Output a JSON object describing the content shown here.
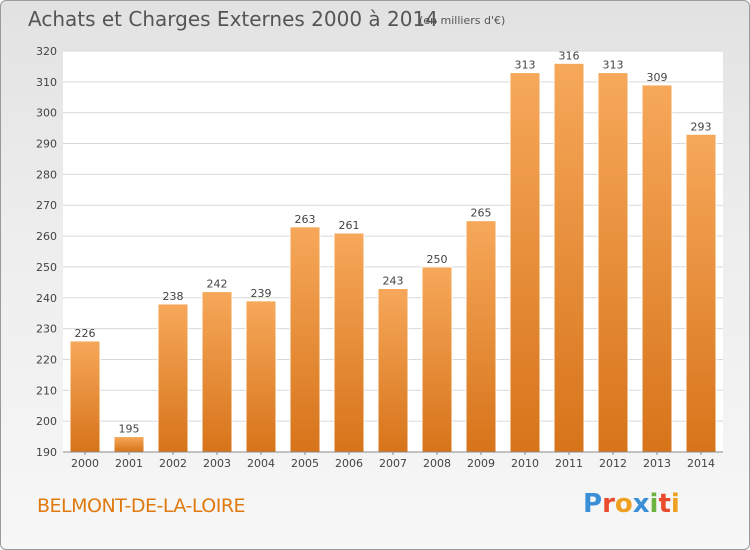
{
  "header": {
    "title": "Achats et Charges Externes 2000 à 2014",
    "subtitle": "(en milliers d'€)"
  },
  "footer": {
    "commune": "BELMONT-DE-LA-LOIRE",
    "logo_text": "Proxiti",
    "logo_colors": [
      "#3a8fd6",
      "#e94b2c",
      "#f0a020",
      "#3a8fd6",
      "#6cb33e",
      "#e94b2c",
      "#f0a020"
    ]
  },
  "colors": {
    "bar_top": "#f6a85a",
    "bar_bottom": "#d7741a",
    "grid": "#d8d8d8",
    "axis_text": "#444444"
  },
  "chart_data": {
    "type": "bar",
    "categories": [
      "2000",
      "2001",
      "2002",
      "2003",
      "2004",
      "2005",
      "2006",
      "2007",
      "2008",
      "2009",
      "2010",
      "2011",
      "2012",
      "2013",
      "2014"
    ],
    "values": [
      226,
      195,
      238,
      242,
      239,
      263,
      261,
      243,
      250,
      265,
      313,
      316,
      313,
      309,
      293
    ],
    "ylim": [
      190,
      320
    ],
    "yticks": [
      190,
      200,
      210,
      220,
      230,
      240,
      250,
      260,
      270,
      280,
      290,
      300,
      310,
      320
    ],
    "grid": true
  }
}
